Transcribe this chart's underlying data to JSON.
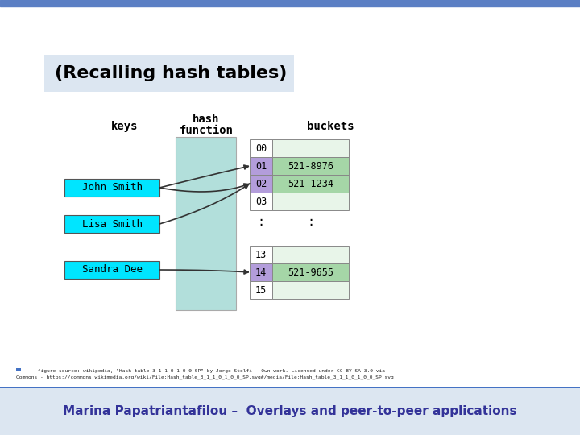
{
  "title": "(Recalling hash tables)",
  "title_bg": "#dce6f1",
  "top_bar_color": "#5b7fc4",
  "key_labels": [
    "John Smith",
    "Lisa Smith",
    "Sandra Dee"
  ],
  "key_color": "#00e5ff",
  "hash_func_color": "#b2dfdb",
  "bucket_rows": [
    [
      "00",
      false
    ],
    [
      "01",
      true
    ],
    [
      "02",
      true
    ],
    [
      "03",
      false
    ],
    [
      ":",
      false
    ],
    [
      "13",
      false
    ],
    [
      "14",
      true
    ],
    [
      "15",
      false
    ]
  ],
  "bucket_values": {
    "01": "521-8976",
    "02": "521-1234",
    "14": "521-9655"
  },
  "bucket_highlight_color": "#a5d6a7",
  "bucket_index_highlight": "#b39ddb",
  "bucket_empty_color": "#e8f5e9",
  "bucket_border_color": "#888888",
  "arrow_color": "#333333",
  "footer_text1": "     figure source: wikipedia, \"Hash table 3 1 1 0 1 0 0 SP\" by Jorge Stolfi - Own work. Licensed under CC BY-SA 3.0 via",
  "footer_text2": "Commons - https://commons.wikimedia.org/wiki/File:Hash_table_3_1_1_0_1_0_0_SP.svg#/media/File:Hash_table_3_1_1_0_1_0_0_SP.svg",
  "footer_author": "Marina Papatriantafilou –  Overlays and peer-to-peer applications",
  "footer_bar_color": "#4472c4",
  "footer_bg": "#dce6f1",
  "footer_blue_line": "#4472c4"
}
